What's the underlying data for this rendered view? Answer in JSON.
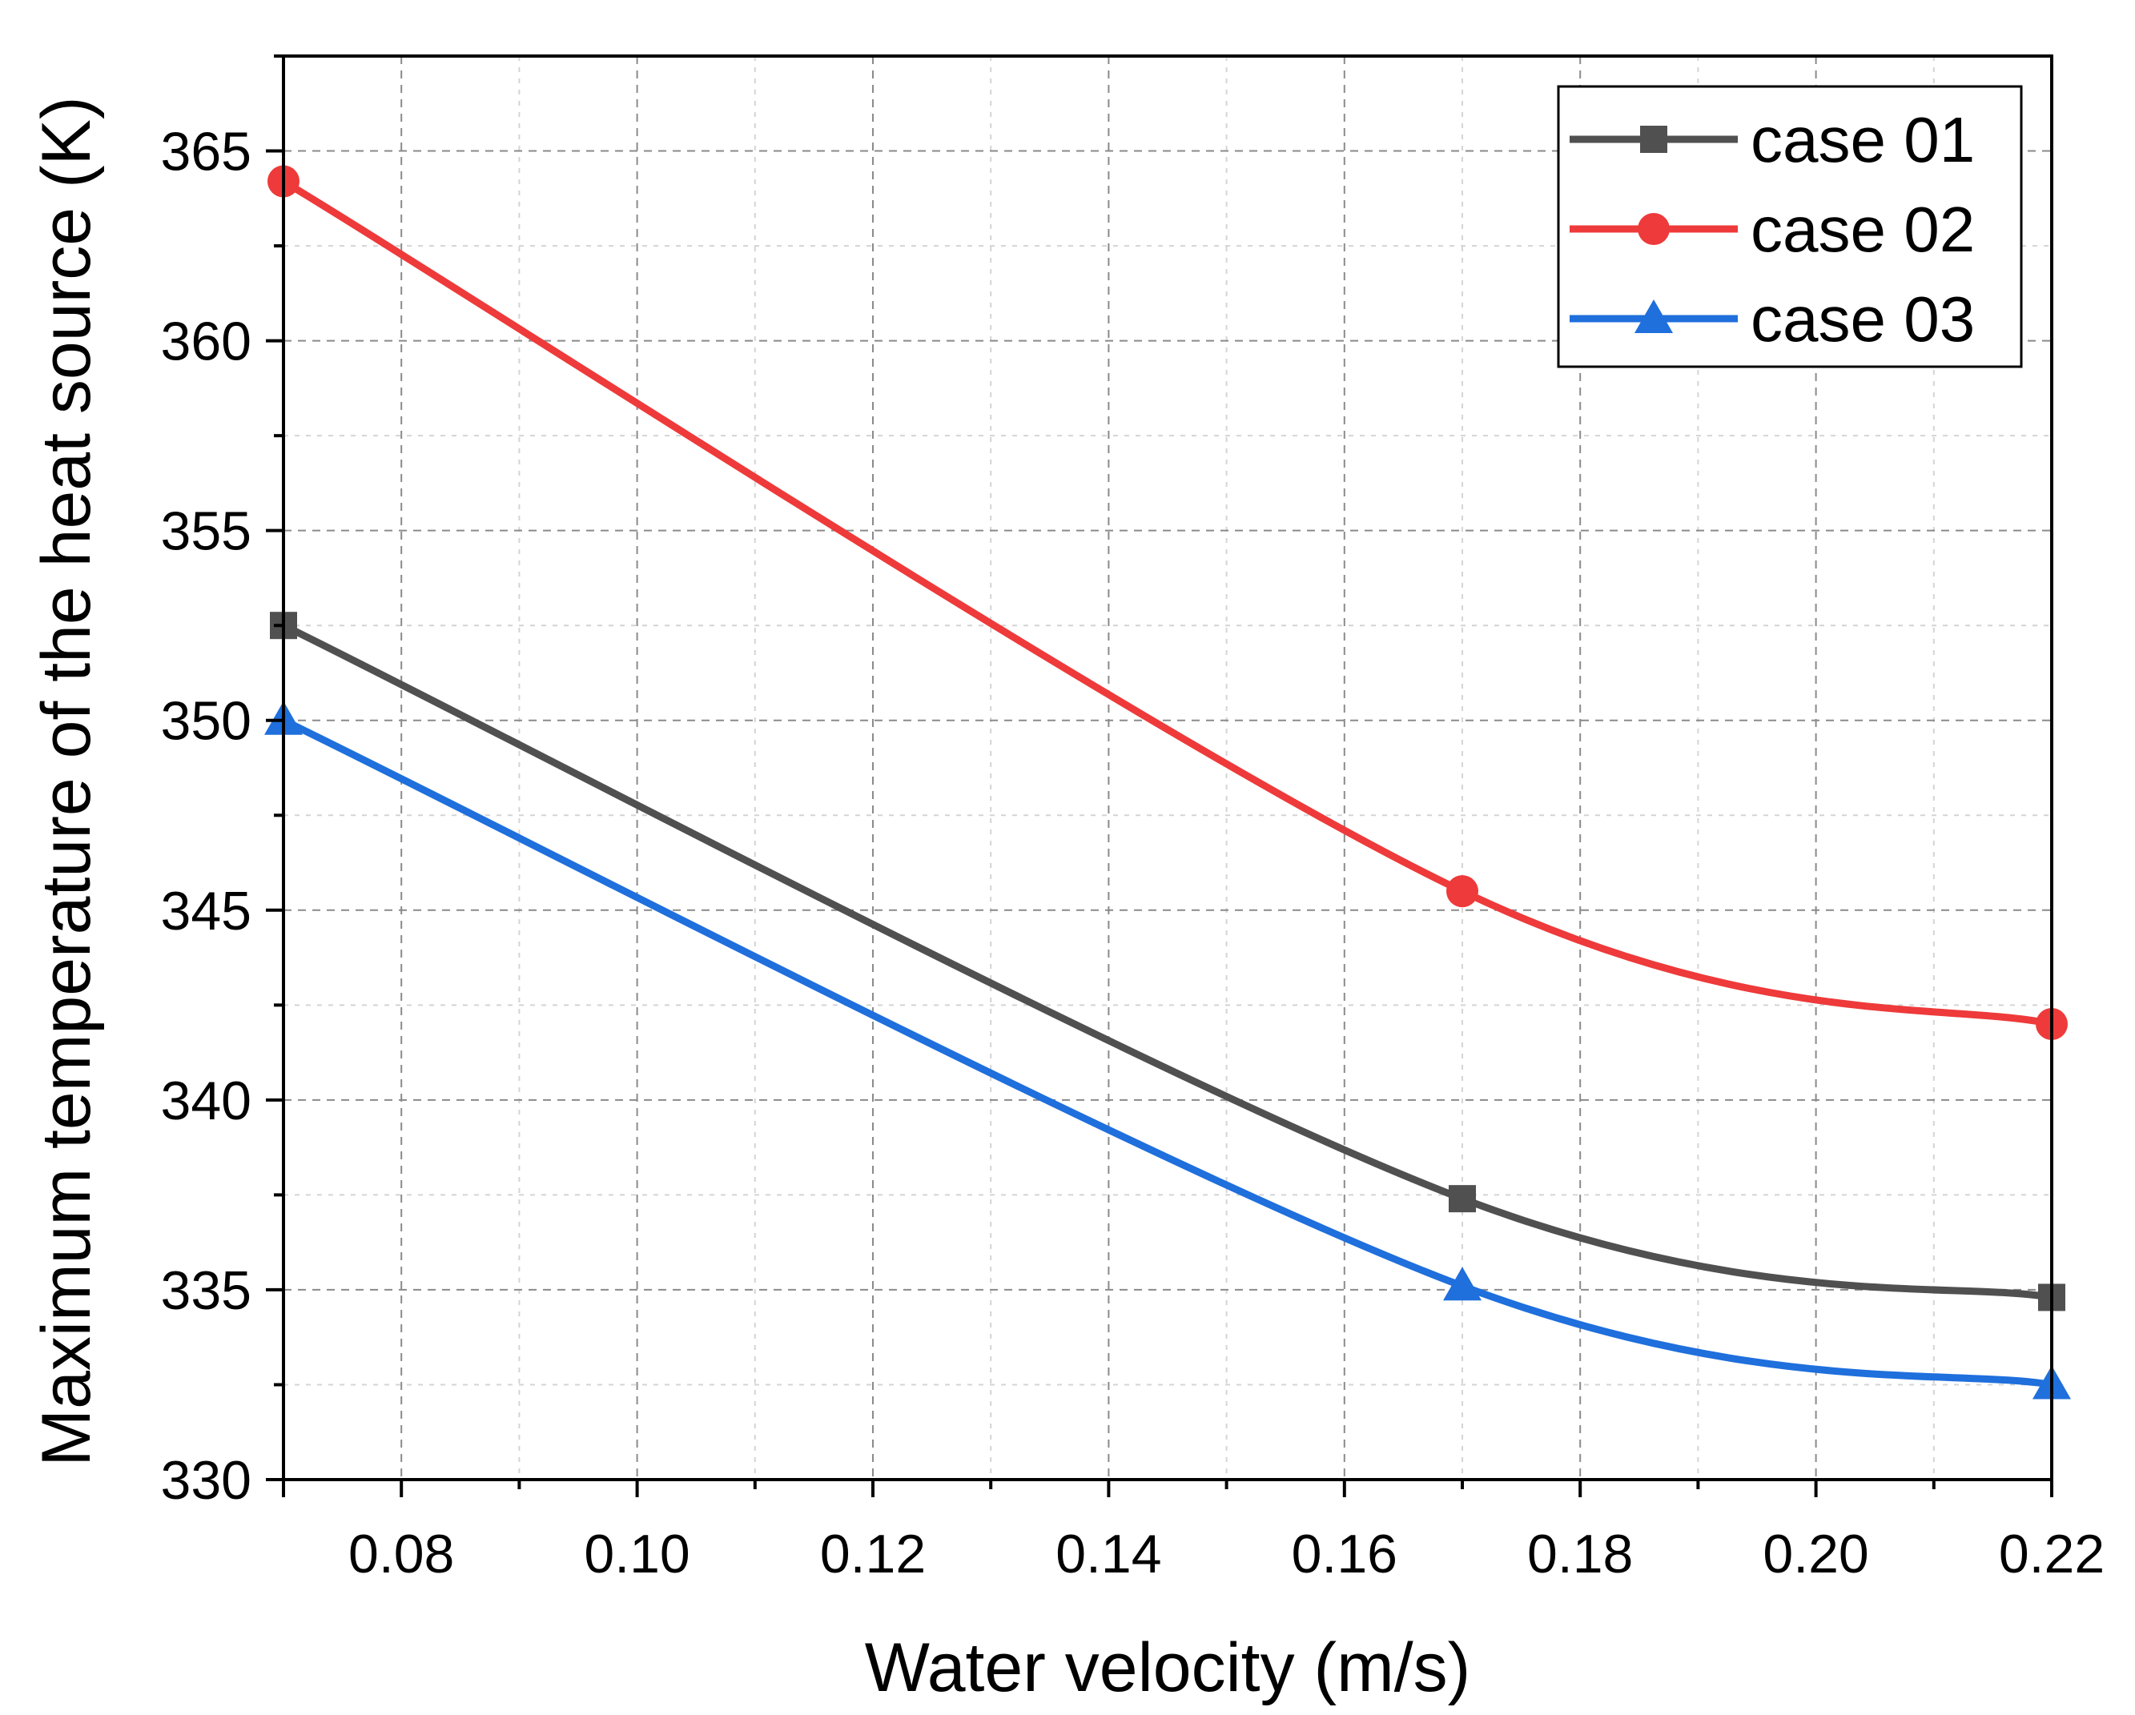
{
  "chart_data": {
    "type": "line",
    "xlabel": "Water velocity (m/s)",
    "ylabel": "Maximum temperature of the heat source (K)",
    "xlim": [
      0.07,
      0.22
    ],
    "ylim": [
      330,
      367.5
    ],
    "x_major_ticks": [
      0.08,
      0.1,
      0.12,
      0.14,
      0.16,
      0.18,
      0.2,
      0.22
    ],
    "x_tick_labels": [
      "0.08",
      "0.10",
      "0.12",
      "0.14",
      "0.16",
      "0.18",
      "0.20",
      "0.22"
    ],
    "y_major_ticks": [
      330,
      335,
      340,
      345,
      350,
      355,
      360,
      365
    ],
    "y_tick_labels": [
      "330",
      "335",
      "340",
      "345",
      "350",
      "355",
      "360",
      "365"
    ],
    "grid": true,
    "legend_position": "top-right",
    "series": [
      {
        "name": "case 01",
        "color": "#505050",
        "marker": "square",
        "x": [
          0.07,
          0.17,
          0.22
        ],
        "y": [
          352.5,
          337.4,
          334.8
        ]
      },
      {
        "name": "case 02",
        "color": "#ee3a3a",
        "marker": "circle",
        "x": [
          0.07,
          0.17,
          0.22
        ],
        "y": [
          364.2,
          345.5,
          342.0
        ]
      },
      {
        "name": "case 03",
        "color": "#1f6fdc",
        "marker": "triangle",
        "x": [
          0.07,
          0.17,
          0.22
        ],
        "y": [
          350.0,
          335.1,
          332.5
        ]
      }
    ]
  }
}
